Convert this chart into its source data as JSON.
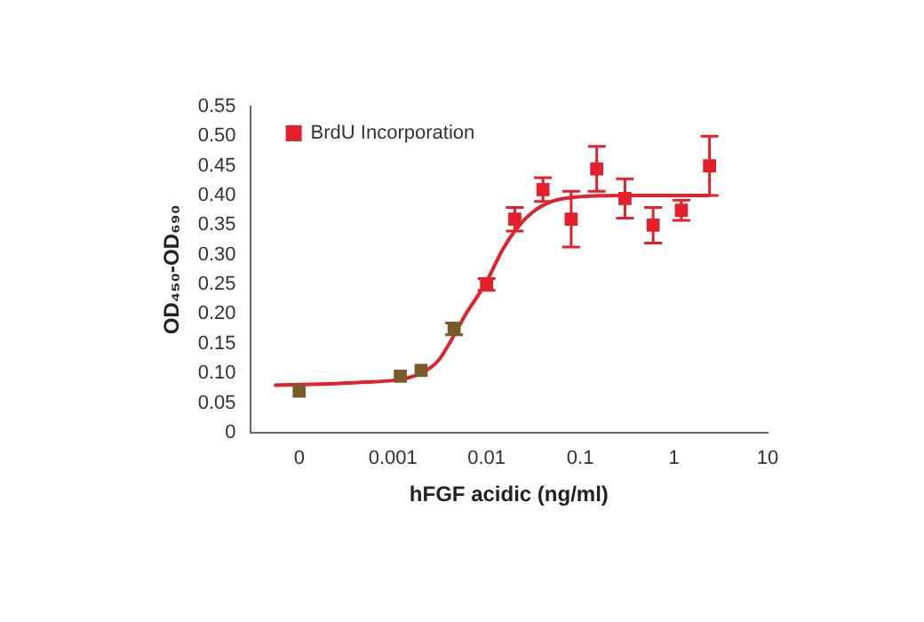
{
  "chart_data": {
    "type": "scatter",
    "xlabel": "hFGF acidic (ng/ml)",
    "ylabel": "OD₄₅₀-OD₆₉₀",
    "log": "x",
    "xlim": [
      3e-05,
      10
    ],
    "xticks": [
      {
        "value": 0.0001,
        "label": "0"
      },
      0.001,
      0.01,
      0.1,
      1,
      10
    ],
    "ylim": [
      0,
      0.55
    ],
    "yticks": [
      0,
      0.05,
      {
        "value": 0.1,
        "label": "0.10"
      },
      0.15,
      {
        "value": 0.2,
        "label": "0.20"
      },
      0.25,
      {
        "value": 0.3,
        "label": "0.30"
      },
      0.35,
      {
        "value": 0.4,
        "label": "0.40"
      },
      0.45,
      {
        "value": 0.5,
        "label": "0.50"
      },
      0.55
    ],
    "grid": false,
    "legend": "top left",
    "series": [
      {
        "name": "BrdU Incorporation",
        "marker": "square",
        "color": "#e3202b",
        "colors": [
          "#7a5a2a",
          "#7a5a2a",
          "#7a5a2a",
          "#7a5a2a",
          "#e3202b",
          "#e3202b",
          "#e3202b",
          "#e3202b",
          "#e3202b",
          "#e3202b",
          "#e3202b",
          "#e3202b",
          "#e3202b"
        ],
        "x": [
          0.0001,
          0.0012,
          0.002,
          0.0045,
          0.01,
          0.02,
          0.04,
          0.08,
          0.15,
          0.3,
          0.6,
          1.2,
          2.4
        ],
        "values": [
          0.07,
          0.095,
          0.105,
          0.175,
          0.25,
          0.36,
          0.41,
          0.36,
          0.445,
          0.395,
          0.35,
          0.375,
          0.45
        ],
        "errors": [
          null,
          null,
          null,
          0.01,
          0.01,
          0.02,
          0.02,
          0.047,
          0.038,
          0.033,
          0.03,
          0.017,
          0.05
        ]
      },
      {
        "type": "line",
        "color": "#e3202b",
        "x": [
          5.4e-05,
          0.0002,
          0.0005,
          0.001,
          0.0015,
          0.002,
          0.003,
          0.004,
          0.006,
          0.008,
          0.01,
          0.015,
          0.02,
          0.03,
          0.05,
          0.1,
          0.3,
          1,
          2.4
        ],
        "values": [
          0.08,
          0.082,
          0.085,
          0.088,
          0.093,
          0.1,
          0.12,
          0.15,
          0.2,
          0.23,
          0.255,
          0.31,
          0.34,
          0.37,
          0.39,
          0.398,
          0.4,
          0.4,
          0.4
        ]
      }
    ]
  }
}
